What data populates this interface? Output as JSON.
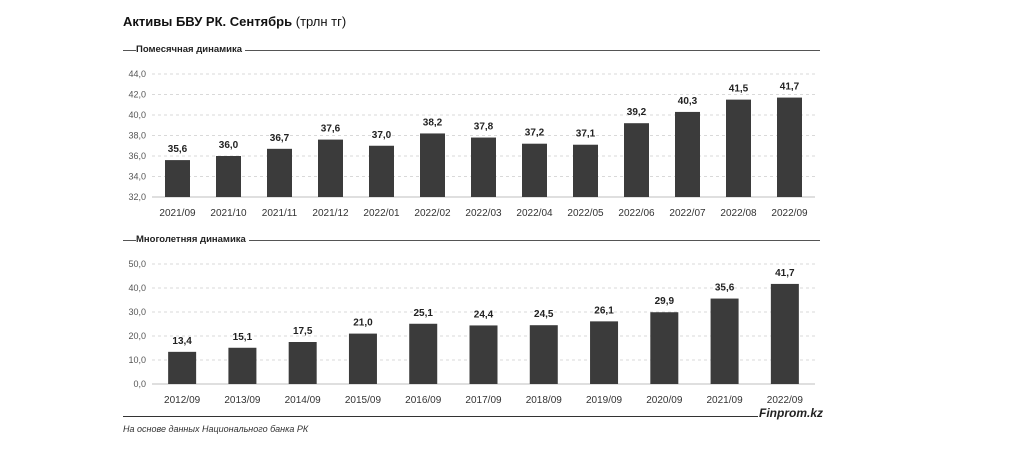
{
  "title_bold": "Активы БВУ РК. Сентябрь",
  "title_unit": "(трлн тг)",
  "source": "На основе данных Национального банка РК",
  "brand": "Finprom.kz",
  "colors": {
    "bar": "#3b3b3b",
    "grid": "#d9d9d9",
    "axis": "#bfbfbf"
  },
  "chart_data": [
    {
      "type": "bar",
      "title": "Помесячная динамика",
      "categories": [
        "2021/09",
        "2021/10",
        "2021/11",
        "2021/12",
        "2022/01",
        "2022/02",
        "2022/03",
        "2022/04",
        "2022/05",
        "2022/06",
        "2022/07",
        "2022/08",
        "2022/09"
      ],
      "values": [
        35.6,
        36.0,
        36.7,
        37.6,
        37.0,
        38.2,
        37.8,
        37.2,
        37.1,
        39.2,
        40.3,
        41.5,
        41.7
      ],
      "value_labels": [
        "35,6",
        "36,0",
        "36,7",
        "37,6",
        "37,0",
        "38,2",
        "37,8",
        "37,2",
        "37,1",
        "39,2",
        "40,3",
        "41,5",
        "41,7"
      ],
      "ylim": [
        32,
        44
      ],
      "yticks": [
        "32,0",
        "34,0",
        "36,0",
        "38,0",
        "40,0",
        "42,0",
        "44,0"
      ],
      "ytick_values": [
        32,
        34,
        36,
        38,
        40,
        42,
        44
      ],
      "grid": true
    },
    {
      "type": "bar",
      "title": "Многолетняя динамика",
      "categories": [
        "2012/09",
        "2013/09",
        "2014/09",
        "2015/09",
        "2016/09",
        "2017/09",
        "2018/09",
        "2019/09",
        "2020/09",
        "2021/09",
        "2022/09"
      ],
      "values": [
        13.4,
        15.1,
        17.5,
        21.0,
        25.1,
        24.4,
        24.5,
        26.1,
        29.9,
        35.6,
        41.7
      ],
      "value_labels": [
        "13,4",
        "15,1",
        "17,5",
        "21,0",
        "25,1",
        "24,4",
        "24,5",
        "26,1",
        "29,9",
        "35,6",
        "41,7"
      ],
      "ylim": [
        0,
        50
      ],
      "yticks": [
        "0,0",
        "10,0",
        "20,0",
        "30,0",
        "40,0",
        "50,0"
      ],
      "ytick_values": [
        0,
        10,
        20,
        30,
        40,
        50
      ],
      "grid": true
    }
  ]
}
